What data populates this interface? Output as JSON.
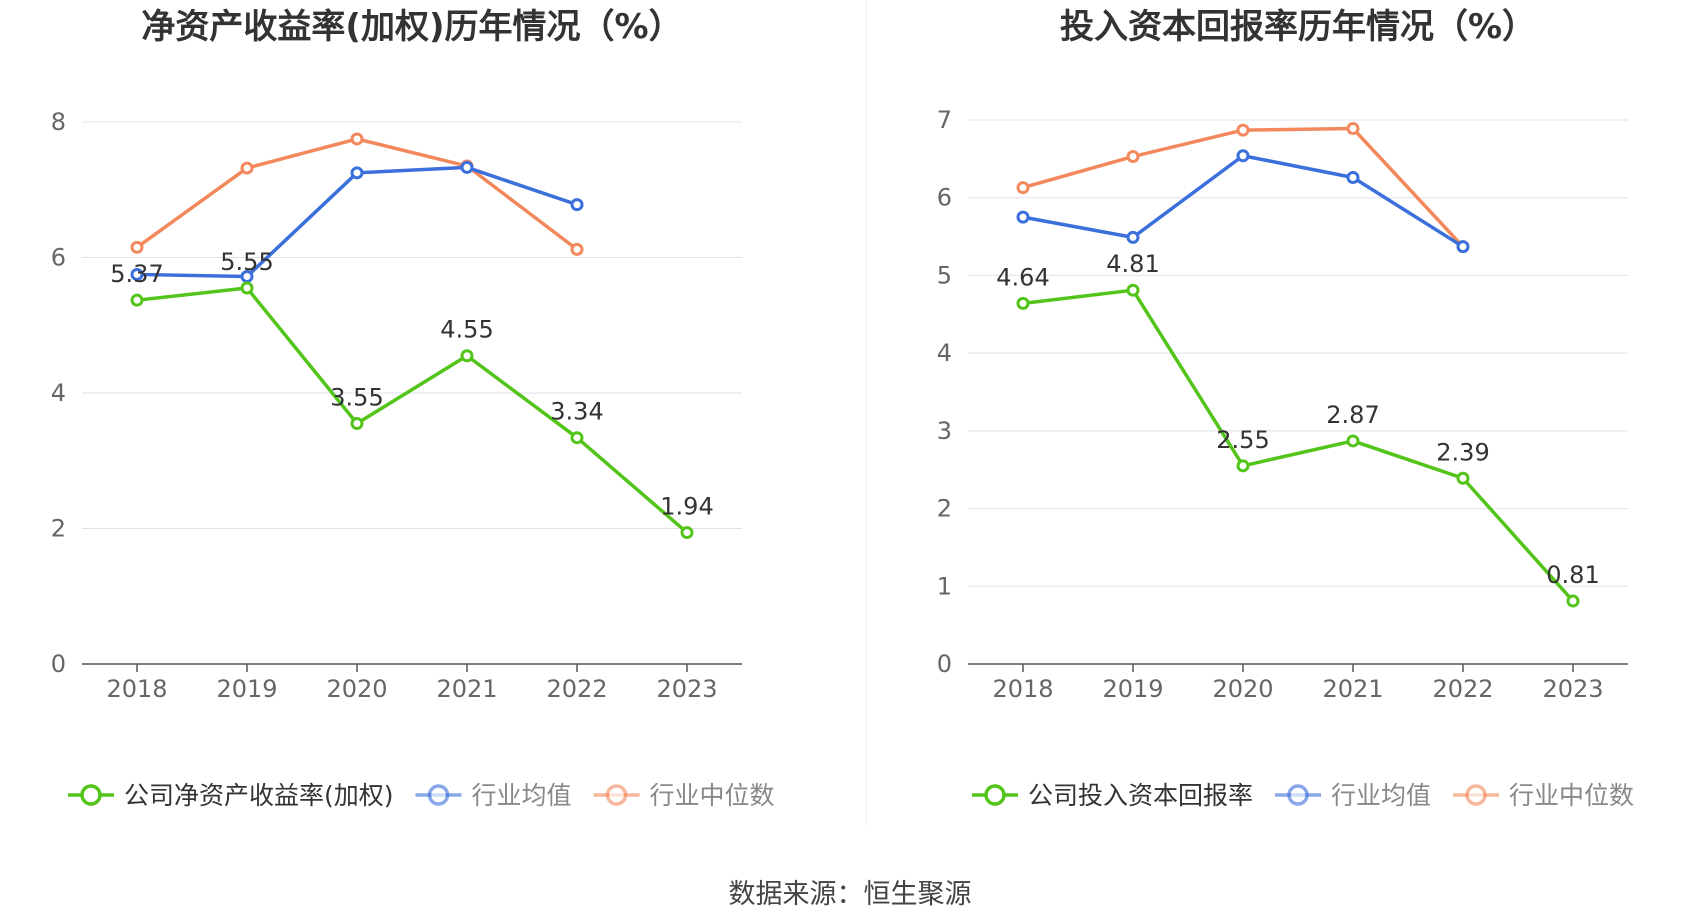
{
  "chart_data": [
    {
      "type": "line",
      "title": "净资产收益率(加权)历年情况（%）",
      "categories": [
        "2018",
        "2019",
        "2020",
        "2021",
        "2022",
        "2023"
      ],
      "ylim": [
        0,
        8
      ],
      "yticks": [
        "0",
        "2",
        "4",
        "6",
        "8"
      ],
      "grid": true,
      "legend_position": "bottom",
      "series": [
        {
          "name": "公司净资产收益率(加权)",
          "color": "#52c41a",
          "values": [
            5.37,
            5.55,
            3.55,
            4.55,
            3.34,
            1.94
          ],
          "labels": [
            "5.37",
            "5.55",
            "3.55",
            "4.55",
            "3.34",
            "1.94"
          ]
        },
        {
          "name": "行业均值",
          "color": "#3a6fdc",
          "values": [
            5.75,
            5.72,
            7.25,
            7.33,
            6.78,
            null
          ]
        },
        {
          "name": "行业中位数",
          "color": "#f2885c",
          "values": [
            6.15,
            7.32,
            7.75,
            7.35,
            6.12,
            null
          ]
        }
      ]
    },
    {
      "type": "line",
      "title": "投入资本回报率历年情况（%）",
      "categories": [
        "2018",
        "2019",
        "2020",
        "2021",
        "2022",
        "2023"
      ],
      "ylim": [
        0,
        7
      ],
      "yticks": [
        "0",
        "1",
        "2",
        "3",
        "4",
        "5",
        "6",
        "7"
      ],
      "grid": true,
      "legend_position": "bottom",
      "series": [
        {
          "name": "公司投入资本回报率",
          "color": "#52c41a",
          "values": [
            4.64,
            4.81,
            2.55,
            2.87,
            2.39,
            0.81
          ],
          "labels": [
            "4.64",
            "4.81",
            "2.55",
            "2.87",
            "2.39",
            "0.81"
          ]
        },
        {
          "name": "行业均值",
          "color": "#3a6fdc",
          "values": [
            5.75,
            5.49,
            6.54,
            6.26,
            5.37,
            null
          ]
        },
        {
          "name": "行业中位数",
          "color": "#f2885c",
          "values": [
            6.13,
            6.53,
            6.87,
            6.89,
            5.37,
            null
          ]
        }
      ]
    }
  ],
  "footer": {
    "source": "数据来源：恒生聚源"
  }
}
